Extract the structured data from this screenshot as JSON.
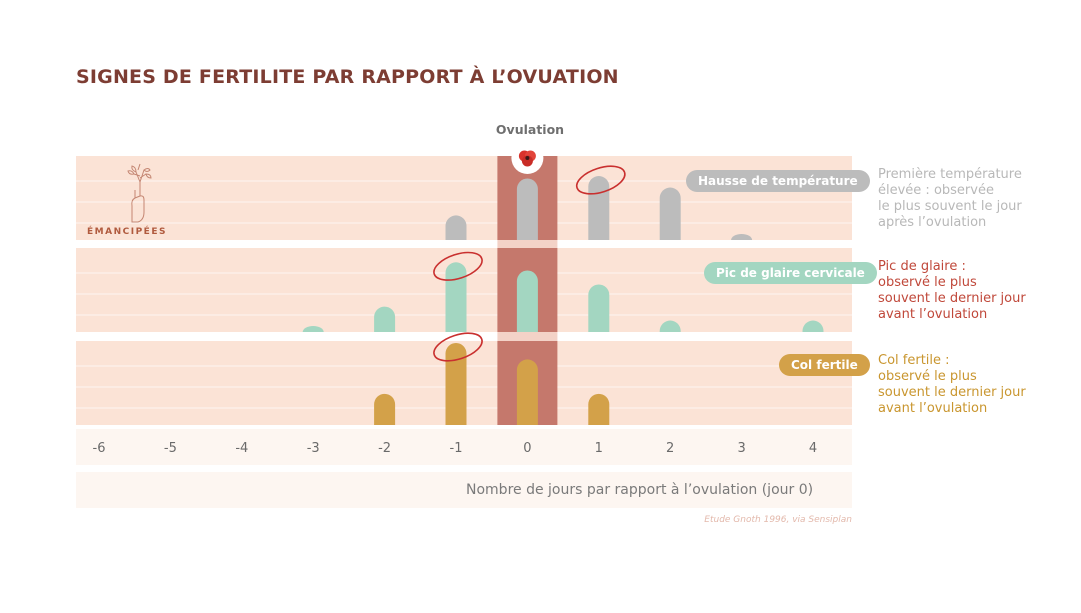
{
  "title": "SIGNES DE FERTILITE PAR RAPPORT À L’OVUATION",
  "ovulation_label": "Ovulation",
  "logo_text": "ÉMANCIPÉES",
  "source": "Etude Gnoth 1996, via Sensiplan",
  "colors": {
    "band": "#fbe3d6",
    "ovulation_column": "#c5786c",
    "title": "#7d3d33",
    "temperature": "#bcbcbc",
    "glaire": "#a3d6c1",
    "col": "#d3a149",
    "circle": "#c9302f"
  },
  "icons": [
    "poppy-icon",
    "hand-plant-icon"
  ],
  "notes": {
    "temperature": [
      "Première température",
      "élevée : observée",
      "le plus souvent le jour",
      "après l’ovulation"
    ],
    "glaire": [
      "Pic de glaire :",
      "observé le plus",
      "souvent le dernier jour",
      "avant l’ovulation"
    ],
    "col": [
      "Col fertile :",
      "observé le plus",
      "souvent le dernier jour",
      "avant l’ovulation"
    ]
  },
  "chart_data": {
    "type": "bar",
    "xlabel": "Nombre de jours par rapport à l’ovulation (jour 0)",
    "categories": [
      "-6",
      "-5",
      "-4",
      "-3",
      "-2",
      "-1",
      "0",
      "1",
      "2",
      "3",
      "4"
    ],
    "ylim": [
      0,
      100
    ],
    "series": [
      {
        "name": "Hausse de température",
        "values": [
          0,
          0,
          0,
          0,
          0,
          30,
          75,
          78,
          64,
          5,
          0
        ],
        "highlight": "1"
      },
      {
        "name": "Pic de glaire cervicale",
        "values": [
          0,
          0,
          0,
          5,
          31,
          85,
          75,
          58,
          14,
          0,
          14
        ],
        "highlight": "-1"
      },
      {
        "name": "Col fertile",
        "values": [
          0,
          0,
          0,
          0,
          38,
          100,
          80,
          38,
          0,
          0,
          0
        ],
        "highlight": "-1"
      }
    ]
  }
}
